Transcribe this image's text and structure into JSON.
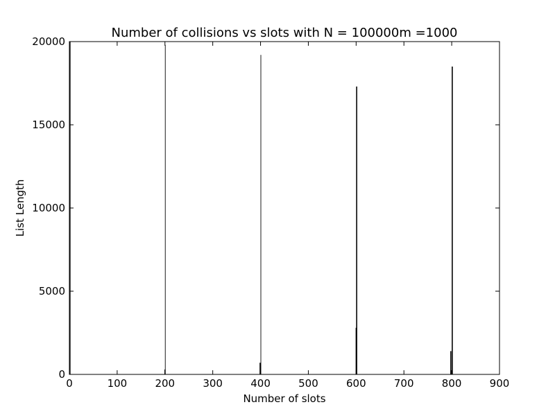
{
  "chart_data": {
    "type": "bar",
    "title": "Number of collisions vs slots with N = 100000m =1000",
    "xlabel": "Number of slots",
    "ylabel": "List Length",
    "xlim": [
      0,
      900
    ],
    "ylim": [
      0,
      20000
    ],
    "xticks": [
      0,
      100,
      200,
      300,
      400,
      500,
      600,
      700,
      800,
      900
    ],
    "yticks": [
      0,
      5000,
      10000,
      15000,
      20000
    ],
    "grid": false,
    "bar_color": "#000000",
    "bars": [
      {
        "x": 0,
        "y": 20000
      },
      {
        "x": 1,
        "y": 20000
      },
      {
        "x": 199,
        "y": 300
      },
      {
        "x": 200,
        "y": 19800
      },
      {
        "x": 398,
        "y": 700
      },
      {
        "x": 399,
        "y": 700
      },
      {
        "x": 400,
        "y": 19200
      },
      {
        "x": 599,
        "y": 2800
      },
      {
        "x": 600,
        "y": 17300
      },
      {
        "x": 601,
        "y": 17300
      },
      {
        "x": 797,
        "y": 1400
      },
      {
        "x": 798,
        "y": 1400
      },
      {
        "x": 800,
        "y": 18500
      },
      {
        "x": 801,
        "y": 18500
      }
    ]
  }
}
